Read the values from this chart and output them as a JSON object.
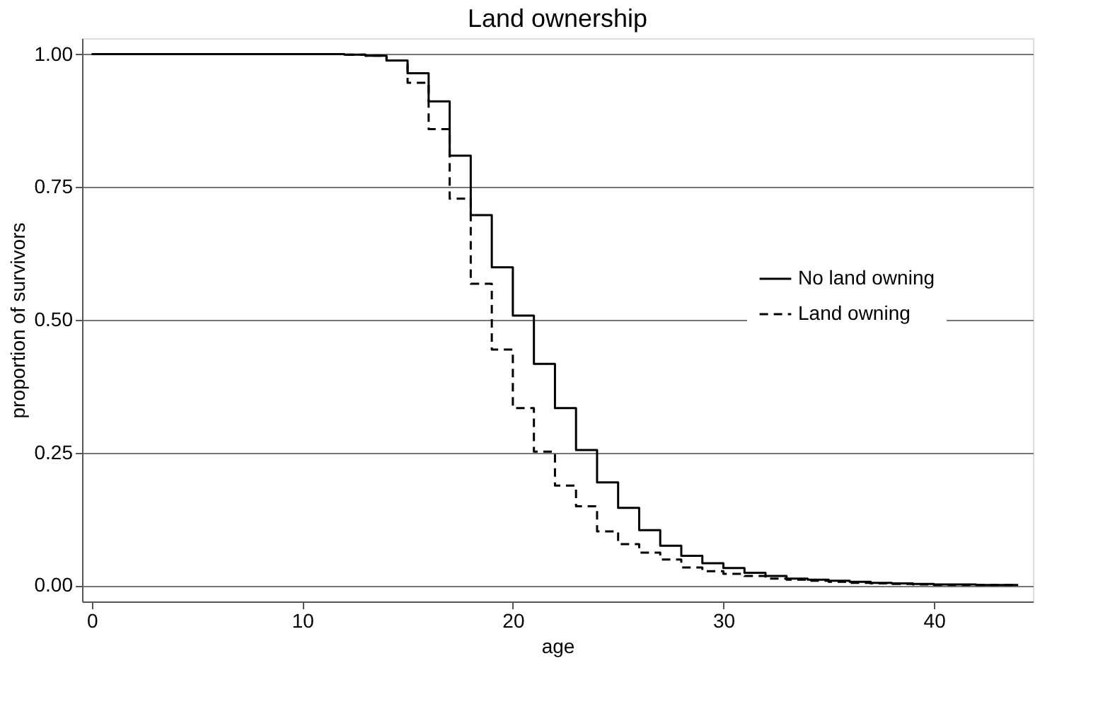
{
  "chart_data": {
    "type": "step",
    "title": "Land ownership",
    "xlabel": "age",
    "ylabel": "proportion of survivors",
    "x": [
      0,
      1,
      2,
      3,
      4,
      5,
      6,
      7,
      8,
      9,
      10,
      11,
      12,
      13,
      14,
      15,
      16,
      17,
      18,
      19,
      20,
      21,
      22,
      23,
      24,
      25,
      26,
      27,
      28,
      29,
      30,
      31,
      32,
      33,
      34,
      35,
      36,
      37,
      38,
      39,
      40,
      41,
      42,
      43,
      44
    ],
    "series": [
      {
        "name": "No land owning",
        "color": "#000000",
        "line_style": "solid",
        "values": [
          1,
          1,
          1,
          1,
          1,
          1,
          1,
          1,
          1,
          1,
          1,
          1,
          0.999,
          0.997,
          0.988,
          0.964,
          0.911,
          0.809,
          0.697,
          0.599,
          0.508,
          0.417,
          0.334,
          0.255,
          0.194,
          0.146,
          0.104,
          0.075,
          0.056,
          0.042,
          0.033,
          0.024,
          0.018,
          0.013,
          0.011,
          0.009,
          0.007,
          0.005,
          0.004,
          0.003,
          0.002,
          0.002,
          0.001,
          0.001,
          0.001
        ]
      },
      {
        "name": "Land owning",
        "color": "#000000",
        "line_style": "dashed",
        "values": [
          1,
          1,
          1,
          1,
          1,
          1,
          1,
          1,
          1,
          1,
          1,
          1,
          0.999,
          0.997,
          0.988,
          0.946,
          0.859,
          0.728,
          0.568,
          0.444,
          0.334,
          0.252,
          0.188,
          0.149,
          0.102,
          0.078,
          0.062,
          0.049,
          0.034,
          0.027,
          0.022,
          0.018,
          0.013,
          0.011,
          0.009,
          0.007,
          0.005,
          0.004,
          0.003,
          0.002,
          0.001,
          0.001,
          0.001,
          0.001,
          0.001
        ]
      }
    ],
    "xlim": [
      -0.46,
      44.7
    ],
    "ylim": [
      -0.03,
      1.03
    ],
    "xticks": [
      0,
      10,
      20,
      30,
      40
    ],
    "yticks": [
      {
        "value": 0,
        "label": "0.00"
      },
      {
        "value": 0.25,
        "label": "0.25"
      },
      {
        "value": 0.5,
        "label": "0.50"
      },
      {
        "value": 0.75,
        "label": "0.75"
      },
      {
        "value": 1,
        "label": "1.00"
      }
    ],
    "grid": "y",
    "legend": "right",
    "marker": "none"
  }
}
